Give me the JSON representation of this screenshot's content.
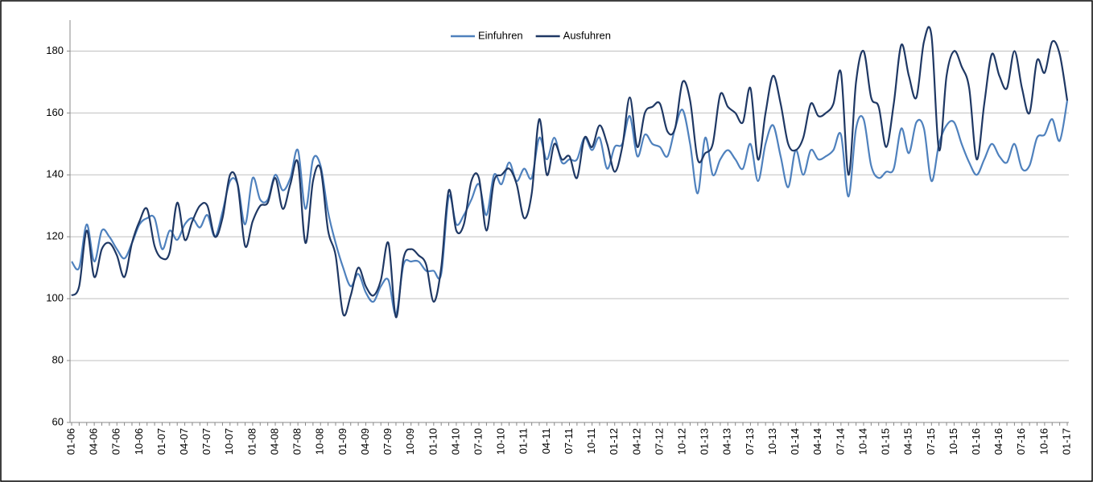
{
  "chart_data": {
    "type": "line",
    "categories": [
      "01-06",
      null,
      null,
      "04-06",
      null,
      null,
      "07-06",
      null,
      null,
      "10-06",
      null,
      null,
      "01-07",
      null,
      null,
      "04-07",
      null,
      null,
      "07-07",
      null,
      null,
      "10-07",
      null,
      null,
      "01-08",
      null,
      null,
      "04-08",
      null,
      null,
      "07-08",
      null,
      null,
      "10-08",
      null,
      null,
      "01-09",
      null,
      null,
      "04-09",
      null,
      null,
      "07-09",
      null,
      null,
      "10-09",
      null,
      null,
      "01-10",
      null,
      null,
      "04-10",
      null,
      null,
      "07-10",
      null,
      null,
      "10-10",
      null,
      null,
      "01-11",
      null,
      null,
      "04-11",
      null,
      null,
      "07-11",
      null,
      null,
      "10-11",
      null,
      null,
      "01-12",
      null,
      null,
      "04-12",
      null,
      null,
      "07-12",
      null,
      null,
      "10-12",
      null,
      null,
      "01-13",
      null,
      null,
      "04-13",
      null,
      null,
      "07-13",
      null,
      null,
      "10-13",
      null,
      null,
      "01-14",
      null,
      null,
      "04-14",
      null,
      null,
      "07-14",
      null,
      null,
      "10-14",
      null,
      null,
      "01-15",
      null,
      null,
      "04-15",
      null,
      null,
      "07-15",
      null,
      null,
      "10-15",
      null,
      null,
      "01-16",
      null,
      null,
      "04-16",
      null,
      null,
      "07-16",
      null,
      null,
      "10-16",
      null,
      null,
      "01-17"
    ],
    "series": [
      {
        "name": "Einfuhren",
        "color": "#4f81bd",
        "values": [
          112,
          110,
          124,
          112,
          122,
          120,
          116,
          113,
          118,
          124,
          126,
          126,
          116,
          122,
          119,
          124,
          126,
          123,
          127,
          120,
          128,
          138,
          137,
          124,
          139,
          132,
          132,
          140,
          135,
          139,
          148,
          129,
          145,
          143,
          128,
          118,
          110,
          104,
          108,
          102,
          99,
          104,
          106,
          95,
          111,
          112,
          112,
          109,
          109,
          108,
          133,
          124,
          127,
          132,
          137,
          127,
          140,
          137,
          144,
          138,
          142,
          139,
          152,
          145,
          152,
          144,
          145,
          145,
          152,
          148,
          152,
          142,
          149,
          150,
          159,
          146,
          153,
          150,
          149,
          146,
          155,
          161,
          150,
          134,
          152,
          140,
          145,
          148,
          145,
          142,
          150,
          138,
          150,
          156,
          146,
          136,
          148,
          140,
          148,
          145,
          146,
          148,
          153,
          133,
          155,
          158,
          143,
          139,
          141,
          142,
          155,
          147,
          157,
          155,
          138,
          150,
          156,
          157,
          150,
          144,
          140,
          145,
          150,
          146,
          144,
          150,
          142,
          143,
          152,
          153,
          158,
          151,
          164
        ]
      },
      {
        "name": "Ausfuhren",
        "color": "#1f3864",
        "values": [
          101,
          104,
          122,
          107,
          116,
          118,
          114,
          107,
          118,
          125,
          129,
          117,
          113,
          115,
          131,
          119,
          125,
          130,
          130,
          120,
          126,
          140,
          137,
          117,
          125,
          130,
          131,
          139,
          129,
          137,
          144,
          118,
          138,
          142,
          122,
          114,
          95,
          101,
          110,
          104,
          101,
          106,
          118,
          94,
          113,
          116,
          114,
          111,
          99,
          110,
          135,
          122,
          124,
          138,
          139,
          122,
          138,
          140,
          142,
          137,
          126,
          134,
          158,
          140,
          150,
          145,
          146,
          139,
          152,
          149,
          156,
          150,
          141,
          149,
          165,
          149,
          160,
          162,
          163,
          154,
          155,
          170,
          164,
          145,
          147,
          150,
          166,
          162,
          160,
          157,
          168,
          145,
          160,
          172,
          163,
          150,
          148,
          152,
          163,
          159,
          160,
          163,
          173,
          140,
          170,
          180,
          165,
          162,
          149,
          163,
          182,
          172,
          165,
          183,
          185,
          148,
          172,
          180,
          175,
          168,
          145,
          163,
          179,
          172,
          168,
          180,
          168,
          160,
          177,
          173,
          183,
          179,
          164
        ]
      }
    ],
    "ylim": [
      60,
      190
    ],
    "yticks": [
      60,
      80,
      100,
      120,
      140,
      160,
      180
    ],
    "grid": true,
    "legend": "top"
  }
}
